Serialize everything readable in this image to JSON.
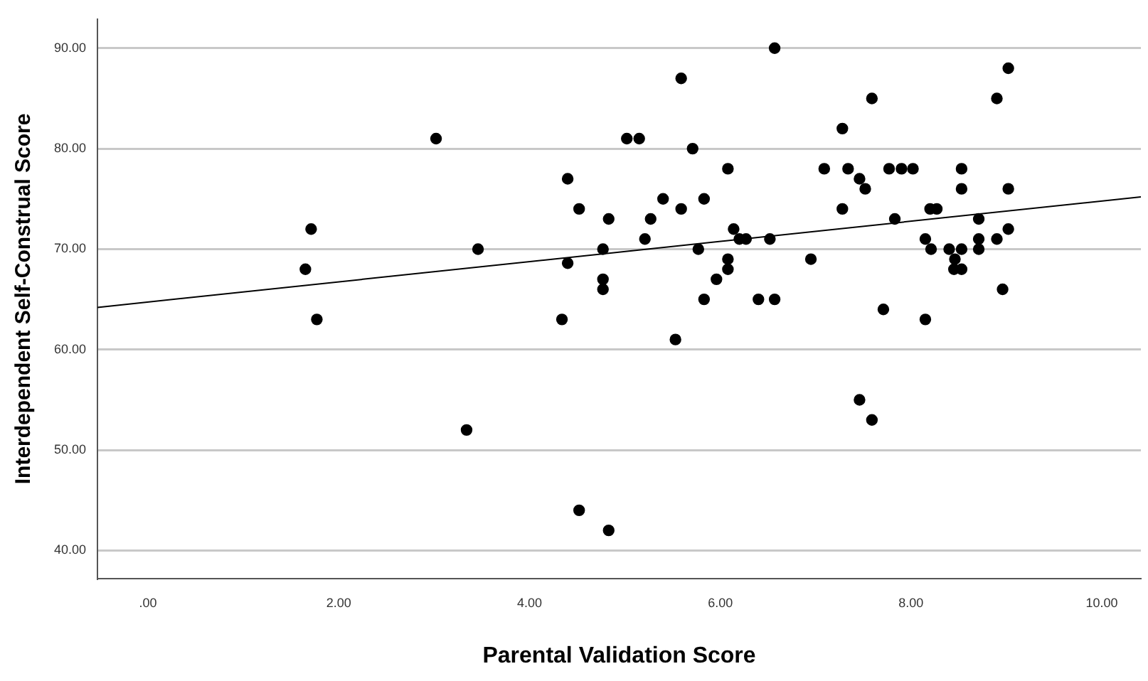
{
  "chart_data": {
    "type": "scatter",
    "xlabel": "Parental Validation Score",
    "ylabel": "Interdependent Self-Construal Score",
    "xlim": [
      -0.53,
      10.41
    ],
    "ylim": [
      37.2,
      92.9
    ],
    "xticks": [
      {
        "value": 0,
        "label": ".00"
      },
      {
        "value": 2,
        "label": "2.00"
      },
      {
        "value": 4,
        "label": "4.00"
      },
      {
        "value": 6,
        "label": "6.00"
      },
      {
        "value": 8,
        "label": "8.00"
      },
      {
        "value": 10,
        "label": "10.00"
      }
    ],
    "yticks": [
      {
        "value": 40,
        "label": "40.00"
      },
      {
        "value": 50,
        "label": "50.00"
      },
      {
        "value": 60,
        "label": "60.00"
      },
      {
        "value": 70,
        "label": "70.00"
      },
      {
        "value": 80,
        "label": "80.00"
      },
      {
        "value": 90,
        "label": "90.00"
      }
    ],
    "grid": "y",
    "series": [
      {
        "marker": "circle",
        "color": "#000000",
        "x": [
          3.02,
          1.71,
          1.65,
          1.77,
          6.57,
          5.59,
          5.02,
          5.15,
          5.71,
          6.08,
          4.4,
          5.4,
          5.83,
          4.52,
          5.59,
          4.83,
          5.27,
          5.21,
          6.14,
          6.2,
          6.27,
          6.52,
          3.46,
          4.77,
          5.77,
          4.4,
          6.08,
          6.08,
          5.96,
          4.77,
          4.77,
          4.34,
          5.83,
          6.4,
          6.57,
          5.53,
          3.34,
          4.52,
          4.83,
          9.02,
          7.59,
          8.9,
          7.28,
          7.09,
          7.34,
          7.77,
          7.9,
          8.02,
          8.53,
          7.46,
          7.52,
          8.53,
          9.02,
          7.28,
          8.2,
          8.27,
          7.83,
          8.71,
          9.02,
          8.15,
          8.71,
          8.9,
          8.21,
          8.4,
          8.53,
          8.71,
          6.95,
          8.46,
          8.45,
          8.53,
          8.96,
          7.71,
          8.15,
          7.46,
          7.59
        ],
        "values": [
          81,
          72,
          68,
          63,
          90,
          87,
          81,
          81,
          80,
          78,
          77,
          75,
          75,
          74,
          74,
          73,
          73,
          71,
          72,
          71,
          71,
          71,
          70,
          70,
          70,
          68.6,
          69,
          68,
          67,
          67,
          66,
          63,
          65,
          65,
          65,
          61,
          52,
          44,
          42,
          88,
          85,
          85,
          82,
          78,
          78,
          78,
          78,
          78,
          78,
          77,
          76,
          76,
          76,
          74,
          74,
          74,
          73,
          73,
          72,
          71,
          71,
          71,
          70,
          70,
          70,
          70,
          69,
          69,
          68,
          68,
          66,
          64,
          63,
          55,
          53
        ]
      },
      {
        "type": "line",
        "marker": "none",
        "color": "#000000",
        "x": [
          -0.53,
          10.41
        ],
        "values": [
          64.2,
          75.2
        ]
      }
    ]
  }
}
